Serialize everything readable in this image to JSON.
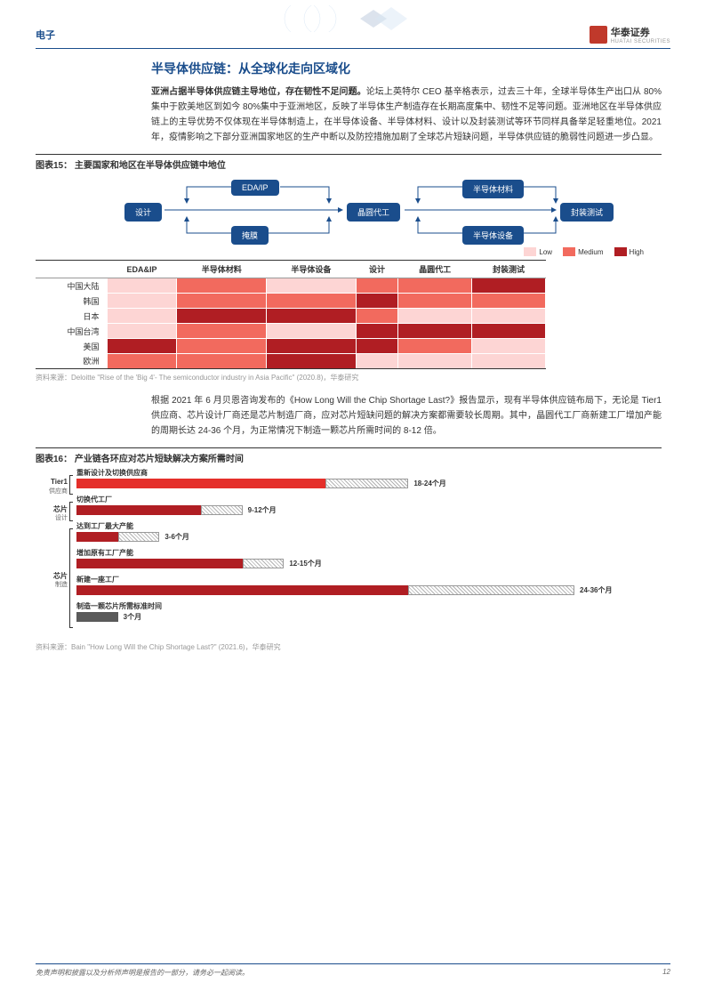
{
  "header": {
    "category": "电子",
    "logo_text": "华泰证券",
    "logo_sub": "HUATAI SECURITIES"
  },
  "section_title": "半导体供应链：从全球化走向区域化",
  "para1_lead": "亚洲占据半导体供应链主导地位，存在韧性不足问题。",
  "para1_rest": "论坛上英特尔 CEO 基辛格表示，过去三十年，全球半导体生产出口从 80%集中于欧美地区到如今 80%集中于亚洲地区，反映了半导体生产制造存在长期高度集中、韧性不足等问题。亚洲地区在半导体供应链上的主导优势不仅体现在半导体制造上，在半导体设备、半导体材料、设计以及封装测试等环节同样具备举足轻重地位。2021 年，疫情影响之下部分亚洲国家地区的生产中断以及防控措施加剧了全球芯片短缺问题，半导体供应链的脆弱性问题进一步凸显。",
  "fig15": {
    "title": "图表15： 主要国家和地区在半导体供应链中地位",
    "source": "资料来源：Deloitte \"Rise of the 'Big 4'- The semiconductor industry in Asia Pacific\" (2020.8)，华泰研究",
    "nodes": {
      "design": "设计",
      "edaip": "EDA/IP",
      "litho": "掩膜",
      "foundry": "晶圆代工",
      "material": "半导体材料",
      "equip": "半导体设备",
      "test": "封装测试"
    },
    "legend": {
      "low": "Low",
      "medium": "Medium",
      "high": "High"
    },
    "colors": {
      "low": "#fdd5d4",
      "medium": "#f26a5e",
      "high": "#b01e23"
    },
    "columns": [
      "EDA&IP",
      "半导体材料",
      "半导体设备",
      "设计",
      "晶圆代工",
      "封装测试"
    ],
    "rows": [
      "中国大陆",
      "韩国",
      "日本",
      "中国台湾",
      "美国",
      "欧洲"
    ],
    "cells": [
      [
        "low",
        "medium",
        "low",
        "medium",
        "medium",
        "high"
      ],
      [
        "low",
        "medium",
        "medium",
        "high",
        "medium",
        "medium"
      ],
      [
        "low",
        "high",
        "high",
        "medium",
        "low",
        "low"
      ],
      [
        "low",
        "medium",
        "low",
        "high",
        "high",
        "high"
      ],
      [
        "high",
        "medium",
        "high",
        "high",
        "medium",
        "low"
      ],
      [
        "medium",
        "medium",
        "high",
        "low",
        "low",
        "low"
      ]
    ]
  },
  "para2": "根据 2021 年 6 月贝恩咨询发布的《How Long Will the Chip Shortage Last?》报告显示，现有半导体供应链布局下，无论是 Tier1 供应商、芯片设计厂商还是芯片制造厂商，应对芯片短缺问题的解决方案都需要较长周期。其中，晶圆代工厂商新建工厂增加产能的周期长达 24-36 个月，为正常情况下制造一颗芯片所需时间的 8-12 倍。",
  "fig16": {
    "title": "图表16： 产业链各环应对芯片短缺解决方案所需时间",
    "source": "资料来源：Bain \"How Long Will the Chip Shortage Last?\" (2021.6)，华泰研究",
    "groups": [
      {
        "label": "Tier1",
        "sublabel": "供应商"
      },
      {
        "label": "芯片",
        "sublabel": "设计"
      },
      {
        "label": "芯片",
        "sublabel": "制造"
      }
    ],
    "bars": [
      {
        "label": "重新设计及切换供应商",
        "min": 18,
        "max": 24,
        "annot": "18-24个月",
        "color": "#e52f2a"
      },
      {
        "label": "切换代工厂",
        "min": 9,
        "max": 12,
        "annot": "9-12个月",
        "color": "#b01e23"
      },
      {
        "label": "达到工厂最大产能",
        "min": 3,
        "max": 6,
        "annot": "3-6个月",
        "color": "#b01e23"
      },
      {
        "label": "增加原有工厂产能",
        "min": 12,
        "max": 15,
        "annot": "12-15个月",
        "color": "#b01e23"
      },
      {
        "label": "新建一座工厂",
        "min": 24,
        "max": 36,
        "annot": "24-36个月",
        "color": "#b01e23"
      },
      {
        "label": "制造一颗芯片所需标准时间",
        "min": 3,
        "max": 3,
        "annot": "3个月",
        "color": "#5a5a5a"
      }
    ],
    "scale_max": 36
  },
  "footer": {
    "disclaimer": "免责声明和披露以及分析师声明是报告的一部分，请务必一起阅读。",
    "page": "12"
  }
}
